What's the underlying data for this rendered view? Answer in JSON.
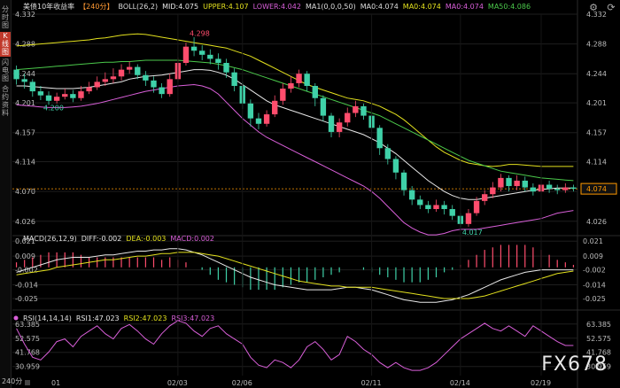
{
  "sidebar": {
    "tabs": [
      {
        "label": "分时图",
        "active": false
      },
      {
        "label": "K线图",
        "active": true
      },
      {
        "label": "闪电图",
        "active": false
      },
      {
        "label": "合约资料",
        "active": false
      }
    ]
  },
  "header": {
    "main": [
      {
        "text": "美债10年收益率",
        "color": "#dddddd"
      },
      {
        "text": "【240分】",
        "color": "#ff9933"
      },
      {
        "text": "BOLL(26,2)",
        "color": "#dddddd"
      },
      {
        "text": "MID:4.075",
        "color": "#e8e8e8"
      },
      {
        "text": "UPPER:4.107",
        "color": "#e3e11e"
      },
      {
        "text": "LOWER:4.042",
        "color": "#d95fd9"
      },
      {
        "text": "MA1(0,0,0,50)",
        "color": "#dddddd"
      },
      {
        "text": "MA0:4.074",
        "color": "#dddddd"
      },
      {
        "text": "MA0:4.074",
        "color": "#e3e11e"
      },
      {
        "text": "MA0:4.074",
        "color": "#d95fd9"
      },
      {
        "text": "MA50:4.086",
        "color": "#4bc94b"
      }
    ],
    "macd": [
      {
        "text": "MACD(26,12,9)",
        "color": "#dddddd"
      },
      {
        "text": "DIFF:-0.002",
        "color": "#e8e8e8"
      },
      {
        "text": "DEA:-0.003",
        "color": "#e3e11e"
      },
      {
        "text": "MACD:0.002",
        "color": "#d95fd9"
      }
    ],
    "rsi": [
      {
        "text": "RSI(14,14,14)",
        "color": "#dddddd"
      },
      {
        "text": "RSI1:47.023",
        "color": "#e8e8e8"
      },
      {
        "text": "RSI2:47.023",
        "color": "#e3e11e"
      },
      {
        "text": "RSI3:47.023",
        "color": "#d95fd9"
      }
    ]
  },
  "price_axis": {
    "ticks": [
      "4.332",
      "4.288",
      "4.244",
      "4.201",
      "4.157",
      "4.114",
      "4.070",
      "4.026"
    ],
    "current": "4.074",
    "current_color": "#ff9900"
  },
  "macd_axis": {
    "ticks": [
      "0.021",
      "0.009",
      "-0.002",
      "-0.014",
      "-0.025"
    ]
  },
  "rsi_axis": {
    "ticks": [
      "63.385",
      "52.575",
      "41.768",
      "30.959"
    ]
  },
  "x_axis": {
    "interval_label": "240分",
    "labels": [
      "01",
      "02/03",
      "02/06",
      "02/11",
      "02/14",
      "02/19"
    ]
  },
  "annotations": {
    "high": "4.298",
    "low_left": "4.200",
    "low_mid": "4.017"
  },
  "watermark": "FX678",
  "colors": {
    "up": "#ff4d6d",
    "down": "#3fd1a8",
    "grid": "#1e1e1e",
    "text": "#bbbbbb"
  },
  "chart_data": {
    "type": "candlestick",
    "price_range": [
      4.01,
      4.332
    ],
    "candles": [
      [
        4.25,
        4.236,
        4.256,
        4.228
      ],
      [
        4.236,
        4.232,
        4.244,
        4.222
      ],
      [
        4.232,
        4.218,
        4.236,
        4.21
      ],
      [
        4.218,
        4.212,
        4.226,
        4.205
      ],
      [
        4.212,
        4.204,
        4.218,
        4.198
      ],
      [
        4.204,
        4.21,
        4.216,
        4.2
      ],
      [
        4.21,
        4.214,
        4.222,
        4.206
      ],
      [
        4.214,
        4.208,
        4.22,
        4.202
      ],
      [
        4.208,
        4.218,
        4.226,
        4.204
      ],
      [
        4.218,
        4.224,
        4.232,
        4.214
      ],
      [
        4.224,
        4.232,
        4.24,
        4.22
      ],
      [
        4.232,
        4.236,
        4.246,
        4.226
      ],
      [
        4.236,
        4.24,
        4.252,
        4.23
      ],
      [
        4.24,
        4.25,
        4.258,
        4.234
      ],
      [
        4.25,
        4.254,
        4.262,
        4.244
      ],
      [
        4.254,
        4.242,
        4.258,
        4.236
      ],
      [
        4.242,
        4.234,
        4.248,
        4.226
      ],
      [
        4.234,
        4.224,
        4.24,
        4.216
      ],
      [
        4.224,
        4.214,
        4.23,
        4.208
      ],
      [
        4.214,
        4.236,
        4.244,
        4.21
      ],
      [
        4.236,
        4.26,
        4.268,
        4.232
      ],
      [
        4.26,
        4.284,
        4.29,
        4.256
      ],
      [
        4.284,
        4.278,
        4.298,
        4.27
      ],
      [
        4.278,
        4.272,
        4.286,
        4.264
      ],
      [
        4.272,
        4.266,
        4.28,
        4.258
      ],
      [
        4.266,
        4.26,
        4.274,
        4.25
      ],
      [
        4.26,
        4.246,
        4.266,
        4.238
      ],
      [
        4.246,
        4.226,
        4.252,
        4.218
      ],
      [
        4.226,
        4.2,
        4.232,
        4.192
      ],
      [
        4.2,
        4.178,
        4.206,
        4.166
      ],
      [
        4.178,
        4.17,
        4.186,
        4.162
      ],
      [
        4.17,
        4.184,
        4.19,
        4.166
      ],
      [
        4.184,
        4.204,
        4.212,
        4.18
      ],
      [
        4.204,
        4.222,
        4.23,
        4.198
      ],
      [
        4.222,
        4.23,
        4.24,
        4.216
      ],
      [
        4.23,
        4.244,
        4.25,
        4.224
      ],
      [
        4.244,
        4.226,
        4.248,
        4.218
      ],
      [
        4.226,
        4.208,
        4.23,
        4.196
      ],
      [
        4.208,
        4.182,
        4.212,
        4.174
      ],
      [
        4.182,
        4.158,
        4.186,
        4.15
      ],
      [
        4.158,
        4.172,
        4.178,
        4.15
      ],
      [
        4.172,
        4.186,
        4.194,
        4.166
      ],
      [
        4.186,
        4.196,
        4.204,
        4.18
      ],
      [
        4.196,
        4.182,
        4.2,
        4.176
      ],
      [
        4.182,
        4.164,
        4.186,
        4.156
      ],
      [
        4.164,
        4.134,
        4.168,
        4.124
      ],
      [
        4.134,
        4.118,
        4.14,
        4.11
      ],
      [
        4.118,
        4.098,
        4.122,
        4.088
      ],
      [
        4.098,
        4.072,
        4.102,
        4.064
      ],
      [
        4.072,
        4.058,
        4.078,
        4.05
      ],
      [
        4.058,
        4.05,
        4.064,
        4.044
      ],
      [
        4.05,
        4.044,
        4.056,
        4.038
      ],
      [
        4.044,
        4.05,
        4.058,
        4.04
      ],
      [
        4.05,
        4.044,
        4.056,
        4.036
      ],
      [
        4.044,
        4.034,
        4.05,
        4.028
      ],
      [
        4.034,
        4.022,
        4.038,
        4.017
      ],
      [
        4.022,
        4.038,
        4.044,
        4.018
      ],
      [
        4.038,
        4.056,
        4.062,
        4.034
      ],
      [
        4.056,
        4.066,
        4.072,
        4.05
      ],
      [
        4.066,
        4.076,
        4.084,
        4.06
      ],
      [
        4.076,
        4.09,
        4.096,
        4.07
      ],
      [
        4.09,
        4.078,
        4.094,
        4.07
      ],
      [
        4.078,
        4.086,
        4.094,
        4.072
      ],
      [
        4.086,
        4.076,
        4.092,
        4.07
      ],
      [
        4.076,
        4.07,
        4.082,
        4.064
      ],
      [
        4.07,
        4.08,
        4.088,
        4.066
      ],
      [
        4.08,
        4.074,
        4.086,
        4.068
      ],
      [
        4.074,
        4.072,
        4.08,
        4.066
      ],
      [
        4.072,
        4.076,
        4.082,
        4.068
      ],
      [
        4.076,
        4.074,
        4.08,
        4.07
      ]
    ],
    "boll_upper": [
      4.285,
      4.286,
      4.287,
      4.288,
      4.289,
      4.29,
      4.291,
      4.292,
      4.293,
      4.294,
      4.296,
      4.297,
      4.299,
      4.301,
      4.302,
      4.303,
      4.302,
      4.3,
      4.298,
      4.296,
      4.294,
      4.292,
      4.29,
      4.288,
      4.286,
      4.284,
      4.282,
      4.278,
      4.274,
      4.27,
      4.264,
      4.258,
      4.252,
      4.246,
      4.24,
      4.234,
      4.228,
      4.224,
      4.22,
      4.216,
      4.212,
      4.208,
      4.206,
      4.204,
      4.2,
      4.196,
      4.19,
      4.184,
      4.176,
      4.166,
      4.156,
      4.146,
      4.136,
      4.128,
      4.122,
      4.116,
      4.112,
      4.11,
      4.108,
      4.107,
      4.108,
      4.11,
      4.11,
      4.109,
      4.108,
      4.107,
      4.107,
      4.107,
      4.107,
      4.107
    ],
    "boll_mid": [
      4.226,
      4.226,
      4.225,
      4.224,
      4.223,
      4.222,
      4.222,
      4.222,
      4.223,
      4.224,
      4.226,
      4.228,
      4.23,
      4.232,
      4.236,
      4.238,
      4.24,
      4.241,
      4.242,
      4.244,
      4.246,
      4.248,
      4.25,
      4.25,
      4.249,
      4.246,
      4.242,
      4.236,
      4.228,
      4.22,
      4.212,
      4.204,
      4.198,
      4.194,
      4.19,
      4.186,
      4.182,
      4.178,
      4.174,
      4.17,
      4.166,
      4.162,
      4.158,
      4.154,
      4.148,
      4.142,
      4.134,
      4.126,
      4.116,
      4.106,
      4.096,
      4.086,
      4.078,
      4.07,
      4.064,
      4.06,
      4.058,
      4.058,
      4.06,
      4.062,
      4.064,
      4.066,
      4.068,
      4.07,
      4.072,
      4.073,
      4.074,
      4.075,
      4.075,
      4.075
    ],
    "boll_lower": [
      4.198,
      4.197,
      4.196,
      4.195,
      4.194,
      4.194,
      4.194,
      4.195,
      4.196,
      4.198,
      4.2,
      4.203,
      4.206,
      4.209,
      4.212,
      4.215,
      4.218,
      4.22,
      4.222,
      4.224,
      4.226,
      4.227,
      4.228,
      4.226,
      4.222,
      4.214,
      4.202,
      4.19,
      4.178,
      4.168,
      4.158,
      4.15,
      4.144,
      4.138,
      4.132,
      4.126,
      4.12,
      4.114,
      4.108,
      4.102,
      4.096,
      4.09,
      4.084,
      4.078,
      4.07,
      4.06,
      4.048,
      4.036,
      4.024,
      4.016,
      4.01,
      4.006,
      4.006,
      4.008,
      4.012,
      4.014,
      4.014,
      4.014,
      4.016,
      4.018,
      4.02,
      4.022,
      4.024,
      4.026,
      4.028,
      4.03,
      4.034,
      4.038,
      4.04,
      4.042
    ],
    "ma50": [
      4.25,
      4.251,
      4.252,
      4.253,
      4.254,
      4.255,
      4.256,
      4.257,
      4.258,
      4.259,
      4.26,
      4.261,
      4.261,
      4.262,
      4.262,
      4.263,
      4.264,
      4.264,
      4.264,
      4.264,
      4.264,
      4.263,
      4.262,
      4.261,
      4.26,
      4.258,
      4.256,
      4.253,
      4.25,
      4.246,
      4.242,
      4.238,
      4.234,
      4.23,
      4.226,
      4.222,
      4.218,
      4.214,
      4.21,
      4.206,
      4.202,
      4.198,
      4.194,
      4.19,
      4.186,
      4.182,
      4.176,
      4.17,
      4.164,
      4.158,
      4.152,
      4.146,
      4.14,
      4.134,
      4.128,
      4.122,
      4.116,
      4.112,
      4.108,
      4.104,
      4.1,
      4.098,
      4.096,
      4.094,
      4.092,
      4.09,
      4.089,
      4.088,
      4.087,
      4.086
    ],
    "macd_range": [
      -0.03,
      0.024
    ],
    "macd_diff": [
      -0.004,
      -0.002,
      0.0,
      0.002,
      0.004,
      0.006,
      0.007,
      0.008,
      0.008,
      0.008,
      0.009,
      0.01,
      0.01,
      0.011,
      0.012,
      0.013,
      0.013,
      0.014,
      0.014,
      0.015,
      0.015,
      0.014,
      0.012,
      0.01,
      0.007,
      0.004,
      0.001,
      -0.002,
      -0.005,
      -0.008,
      -0.01,
      -0.012,
      -0.014,
      -0.015,
      -0.016,
      -0.017,
      -0.018,
      -0.018,
      -0.018,
      -0.018,
      -0.017,
      -0.016,
      -0.016,
      -0.017,
      -0.018,
      -0.02,
      -0.022,
      -0.024,
      -0.026,
      -0.027,
      -0.028,
      -0.028,
      -0.028,
      -0.027,
      -0.026,
      -0.024,
      -0.022,
      -0.019,
      -0.016,
      -0.013,
      -0.01,
      -0.008,
      -0.006,
      -0.004,
      -0.003,
      -0.002,
      -0.002,
      -0.002,
      -0.002,
      -0.002
    ],
    "macd_dea": [
      -0.006,
      -0.005,
      -0.004,
      -0.003,
      -0.002,
      0.0,
      0.001,
      0.002,
      0.003,
      0.004,
      0.005,
      0.006,
      0.006,
      0.007,
      0.008,
      0.009,
      0.009,
      0.01,
      0.011,
      0.011,
      0.012,
      0.012,
      0.012,
      0.011,
      0.01,
      0.009,
      0.007,
      0.005,
      0.003,
      0.001,
      -0.001,
      -0.003,
      -0.005,
      -0.007,
      -0.009,
      -0.011,
      -0.012,
      -0.013,
      -0.014,
      -0.015,
      -0.015,
      -0.016,
      -0.016,
      -0.016,
      -0.016,
      -0.017,
      -0.018,
      -0.019,
      -0.02,
      -0.021,
      -0.022,
      -0.023,
      -0.024,
      -0.025,
      -0.025,
      -0.025,
      -0.025,
      -0.024,
      -0.023,
      -0.021,
      -0.019,
      -0.017,
      -0.015,
      -0.013,
      -0.011,
      -0.009,
      -0.007,
      -0.005,
      -0.004,
      -0.003
    ],
    "rsi_range": [
      24,
      70
    ],
    "rsi": [
      60,
      48,
      38,
      36,
      42,
      50,
      52,
      46,
      54,
      58,
      62,
      56,
      52,
      60,
      63,
      58,
      52,
      48,
      56,
      62,
      66,
      64,
      58,
      54,
      60,
      62,
      56,
      52,
      48,
      38,
      32,
      30,
      36,
      34,
      30,
      36,
      46,
      50,
      44,
      36,
      40,
      54,
      50,
      44,
      40,
      34,
      30,
      34,
      30,
      28,
      28,
      30,
      34,
      40,
      46,
      52,
      56,
      60,
      64,
      60,
      58,
      62,
      58,
      54,
      62,
      58,
      54,
      50,
      47,
      47
    ]
  }
}
